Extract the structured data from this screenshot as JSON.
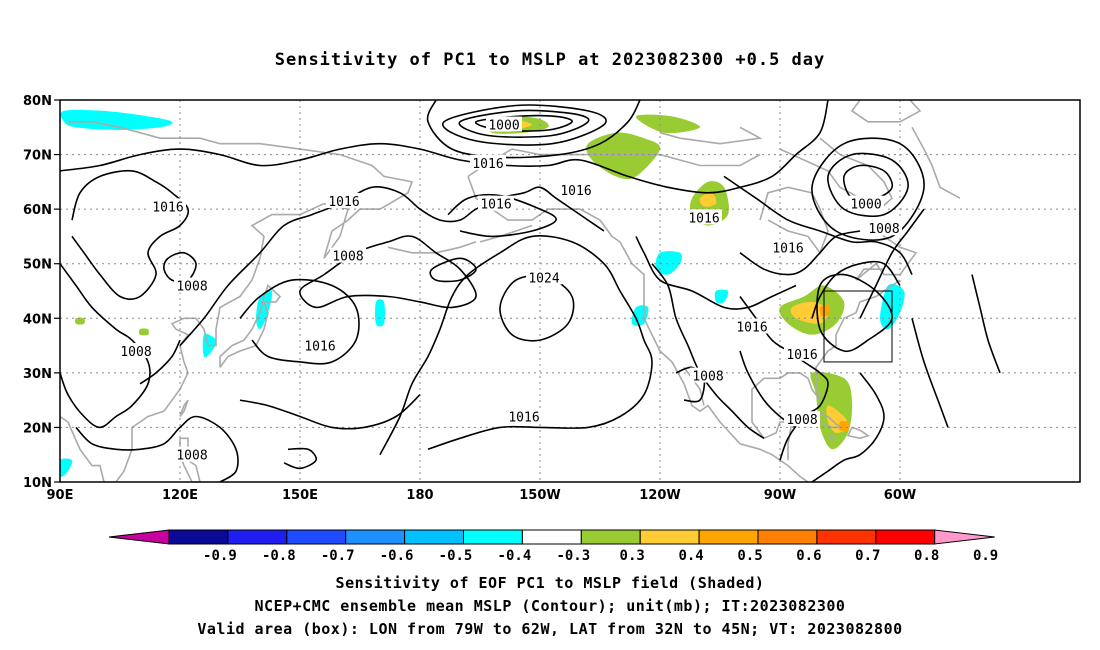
{
  "title": "Sensitivity of PC1 to MSLP at 2023082300 +0.5 day",
  "lat_labels": [
    "80N",
    "70N",
    "60N",
    "50N",
    "40N",
    "30N",
    "20N",
    "10N"
  ],
  "lon_labels": [
    "90E",
    "120E",
    "150E",
    "180",
    "150W",
    "120W",
    "90W",
    "60W"
  ],
  "contour_labels": [
    {
      "text": "1000",
      "lon": -159,
      "lat": 75.5
    },
    {
      "text": "1016",
      "lon": -163,
      "lat": 68.5
    },
    {
      "text": "1016",
      "lon": -141,
      "lat": 63.5
    },
    {
      "text": "1016",
      "lon": -109,
      "lat": 58.5
    },
    {
      "text": "1016",
      "lon": 117,
      "lat": 60.5
    },
    {
      "text": "1016",
      "lon": 161,
      "lat": 61.5
    },
    {
      "text": "1016",
      "lon": -161,
      "lat": 61
    },
    {
      "text": "1016",
      "lon": -88,
      "lat": 53
    },
    {
      "text": "1000",
      "lon": -68.5,
      "lat": 61
    },
    {
      "text": "1008",
      "lon": -64,
      "lat": 56.5
    },
    {
      "text": "1008",
      "lon": 162,
      "lat": 51.5
    },
    {
      "text": "1008",
      "lon": 123,
      "lat": 46
    },
    {
      "text": "1024",
      "lon": -149,
      "lat": 47.5
    },
    {
      "text": "1016",
      "lon": -97,
      "lat": 38.5
    },
    {
      "text": "1016",
      "lon": 155,
      "lat": 35
    },
    {
      "text": "1008",
      "lon": 109,
      "lat": 34
    },
    {
      "text": "1016",
      "lon": -84.5,
      "lat": 33.5
    },
    {
      "text": "1008",
      "lon": -108,
      "lat": 29.5
    },
    {
      "text": "1016",
      "lon": -154,
      "lat": 22
    },
    {
      "text": "1008",
      "lon": -84.5,
      "lat": 21.5
    },
    {
      "text": "1008",
      "lon": 123,
      "lat": 15
    }
  ],
  "colorbar": {
    "labels": [
      "-0.9",
      "-0.8",
      "-0.7",
      "-0.6",
      "-0.5",
      "-0.4",
      "-0.3",
      "0.3",
      "0.4",
      "0.5",
      "0.6",
      "0.7",
      "0.8",
      "0.9"
    ],
    "colors": [
      "#0a0a96",
      "#1e1ef0",
      "#1f4bff",
      "#1e90ff",
      "#00c0ff",
      "#00ffff",
      "#ffffff",
      "#99cc33",
      "#ffcc33",
      "#ffa500",
      "#ff7f00",
      "#ff3300",
      "#ff0000"
    ],
    "low_extend_color": "#c8009e",
    "high_extend_color": "#ff99cc"
  },
  "valid_box": {
    "lon_min": -79,
    "lon_max": -62,
    "lat_min": 32,
    "lat_max": 45
  },
  "captions": [
    "Sensitivity of EOF PC1 to MSLP field (Shaded)",
    "NCEP+CMC ensemble mean MSLP (Contour); unit(mb); IT:2023082300",
    "Valid area (box): LON from 79W to 62W, LAT from 32N to 45N; VT: 2023082800"
  ]
}
